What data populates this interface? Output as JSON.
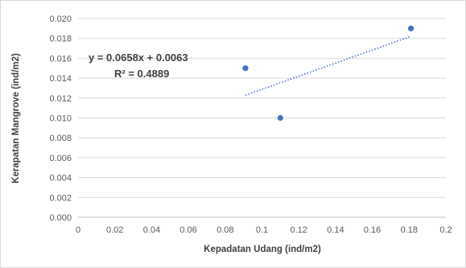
{
  "chart_data": {
    "type": "scatter",
    "xlabel": "Kepadatan Udang (ind/m2)",
    "ylabel": "Kerapatan Mangrove (ind/m2)",
    "xlim": [
      0,
      0.2
    ],
    "ylim": [
      0,
      0.02
    ],
    "x_ticks": [
      "0",
      "0.02",
      "0.04",
      "0.06",
      "0.08",
      "0.1",
      "0.12",
      "0.14",
      "0.16",
      "0.18",
      "0.2"
    ],
    "y_ticks": [
      "0.000",
      "0.002",
      "0.004",
      "0.006",
      "0.008",
      "0.010",
      "0.012",
      "0.014",
      "0.016",
      "0.018",
      "0.020"
    ],
    "grid": "horizontal",
    "legend": "none",
    "series": [
      {
        "points": [
          {
            "x": 0.091,
            "y": 0.015
          },
          {
            "x": 0.11,
            "y": 0.01
          },
          {
            "x": 0.181,
            "y": 0.019
          }
        ]
      }
    ],
    "trendline": {
      "type": "linear",
      "slope": 0.0658,
      "intercept": 0.0063,
      "x_range": [
        0.091,
        0.181
      ],
      "style": "dotted"
    },
    "annotations": {
      "equation": "y = 0.0658x + 0.0063",
      "r_squared": "R² = 0.4889"
    },
    "colors": {
      "marker": "#4472c4",
      "trendline": "#4472c4",
      "grid": "#d9d9d9",
      "text": "#595959"
    }
  }
}
